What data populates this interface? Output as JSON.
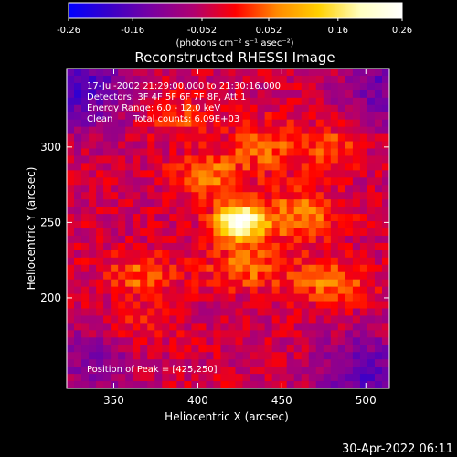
{
  "colorbar": {
    "ticks": [
      "-0.26",
      "-0.16",
      "-0.052",
      "0.052",
      "0.16",
      "0.26"
    ],
    "tick_values": [
      -0.26,
      -0.16,
      -0.052,
      0.052,
      0.16,
      0.26
    ],
    "unit_label": "(photons cm⁻² s⁻¹ asec⁻²)",
    "range": [
      -0.26,
      0.26
    ],
    "colormap": [
      "#0000ff",
      "#3a00c8",
      "#7a00a0",
      "#b00070",
      "#ff0000",
      "#ff8a00",
      "#ffd000",
      "#ffffc0",
      "#ffffff"
    ]
  },
  "chart_data": {
    "type": "heatmap",
    "title": "Reconstructed RHESSI Image",
    "xlabel": "Heliocentric X (arcsec)",
    "ylabel": "Heliocentric Y (arcsec)",
    "xlim": [
      322,
      514
    ],
    "ylim": [
      140,
      352
    ],
    "x_ticks": [
      350,
      400,
      450,
      500
    ],
    "y_ticks": [
      200,
      250,
      300
    ],
    "annotation_lines": [
      "17-Jul-2002 21:29:00.000 to 21:30:16.000",
      "Detectors: 3F 4F 5F 6F 7F 8F, Att 1",
      "Energy Range: 6.0 - 12.0 keV",
      "Clean",
      "Total counts: 6.09E+03"
    ],
    "peak_label": "Position of Peak = [425,250]",
    "peak": [
      425,
      250
    ],
    "sources": [
      {
        "x": 425,
        "y": 250,
        "sx": 10,
        "sy": 8,
        "amp": 0.3
      },
      {
        "x": 405,
        "y": 280,
        "sx": 14,
        "sy": 10,
        "amp": 0.1
      },
      {
        "x": 460,
        "y": 255,
        "sx": 18,
        "sy": 12,
        "amp": 0.1
      },
      {
        "x": 480,
        "y": 210,
        "sx": 14,
        "sy": 10,
        "amp": 0.1
      },
      {
        "x": 365,
        "y": 215,
        "sx": 16,
        "sy": 10,
        "amp": 0.08
      },
      {
        "x": 430,
        "y": 220,
        "sx": 18,
        "sy": 10,
        "amp": 0.09
      },
      {
        "x": 480,
        "y": 300,
        "sx": 12,
        "sy": 10,
        "amp": 0.07
      },
      {
        "x": 390,
        "y": 320,
        "sx": 14,
        "sy": 10,
        "amp": 0.06
      },
      {
        "x": 440,
        "y": 300,
        "sx": 16,
        "sy": 12,
        "amp": 0.08
      },
      {
        "x": 360,
        "y": 180,
        "sx": 16,
        "sy": 12,
        "amp": 0.05
      },
      {
        "x": 330,
        "y": 340,
        "sx": 20,
        "sy": 20,
        "amp": -0.14
      },
      {
        "x": 500,
        "y": 150,
        "sx": 20,
        "sy": 18,
        "amp": -0.12
      },
      {
        "x": 510,
        "y": 340,
        "sx": 18,
        "sy": 18,
        "amp": -0.1
      },
      {
        "x": 340,
        "y": 160,
        "sx": 18,
        "sy": 18,
        "amp": -0.08
      }
    ]
  },
  "footer": {
    "timestamp": "30-Apr-2022 06:11"
  }
}
